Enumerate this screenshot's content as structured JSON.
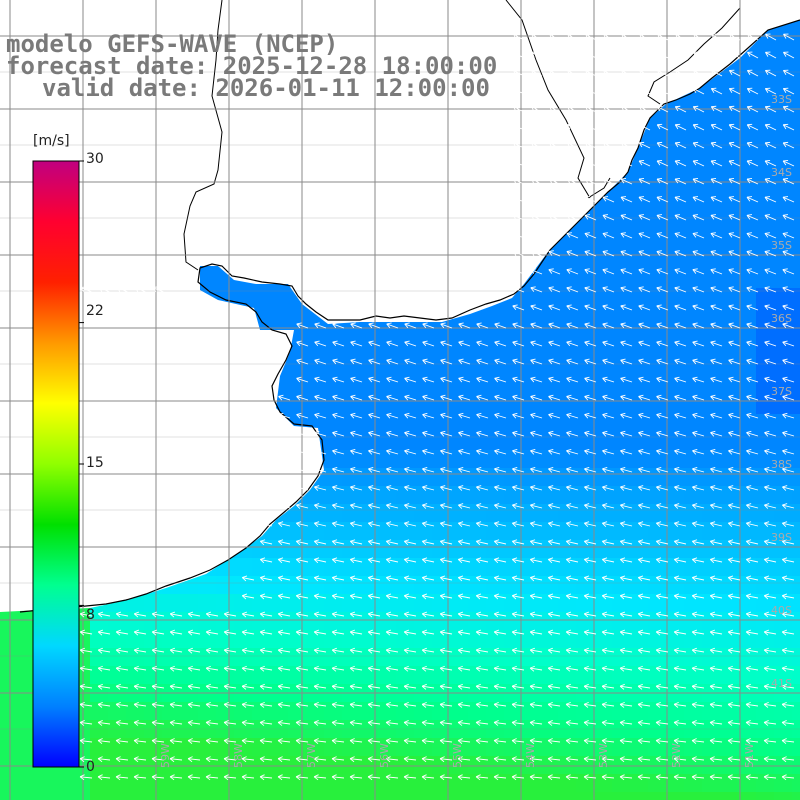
{
  "title": {
    "model": "modelo GEFS-WAVE (NCEP)",
    "forecast": "forecast date: 2025-12-28 18:00:00",
    "valid": "valid date: 2026-01-11 12:00:00"
  },
  "colorbar": {
    "unit": "[m/s]",
    "ticks": [
      "30",
      "22",
      "15",
      "8",
      "0"
    ],
    "tick_values": [
      30,
      22,
      15,
      8,
      0
    ],
    "range": [
      0,
      30
    ],
    "colors": [
      "#0000ff",
      "#0080ff",
      "#00d8ff",
      "#00ff90",
      "#00e000",
      "#90ff00",
      "#ffff00",
      "#ff9900",
      "#ff2000",
      "#ff0030",
      "#c00080"
    ]
  },
  "map": {
    "lon_labels": [
      "59W",
      "58W",
      "57W",
      "56W",
      "55W",
      "54W",
      "53W",
      "52W",
      "51W"
    ],
    "lat_labels": [
      "33S",
      "34S",
      "35S",
      "36S",
      "37S",
      "38S",
      "39S",
      "40S",
      "41S"
    ],
    "land_color": "#ffffff",
    "coast_color": "#000000",
    "grid_color": "#8a8a8a",
    "arrow_color": "#ffffff"
  }
}
